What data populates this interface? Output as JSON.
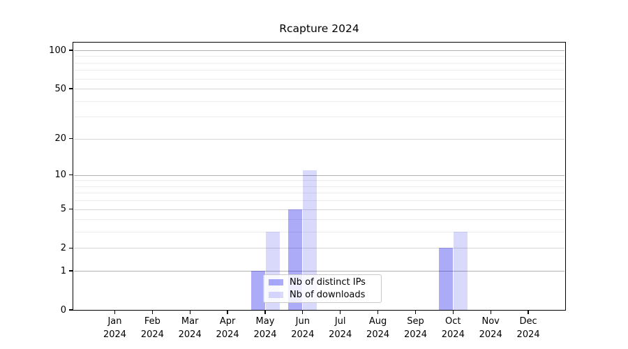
{
  "title": "Rcapture 2024",
  "accent_colors": {
    "bar_distinct_ips": "rgba(10,10,235,0.34)",
    "bar_downloads": "rgba(10,10,235,0.155)"
  },
  "chart_data": {
    "type": "bar",
    "title": "Rcapture 2024",
    "xlabel": "",
    "ylabel": "",
    "categories": [
      "Jan\n2024",
      "Feb\n2024",
      "Mar\n2024",
      "Apr\n2024",
      "May\n2024",
      "Jun\n2024",
      "Jul\n2024",
      "Aug\n2024",
      "Sep\n2024",
      "Oct\n2024",
      "Nov\n2024",
      "Dec\n2024"
    ],
    "series": [
      {
        "name": "Nb of distinct IPs",
        "color": "rgba(10,10,235,0.34)",
        "values": [
          0,
          0,
          0,
          0,
          1,
          5,
          0,
          0,
          0,
          2,
          0,
          0
        ]
      },
      {
        "name": "Nb of downloads",
        "color": "rgba(10,10,235,0.155)",
        "values": [
          0,
          0,
          0,
          0,
          3,
          11,
          0,
          0,
          0,
          3,
          0,
          0
        ]
      }
    ],
    "y_axis": {
      "scale": "log10(1+x)",
      "tick_values": [
        0,
        1,
        2,
        5,
        10,
        20,
        50,
        100
      ],
      "tick_labels": [
        "0",
        "1",
        "2",
        "5",
        "10",
        "20",
        "50",
        "100"
      ],
      "ylim_top_value": 115,
      "gridlines_strong": [
        1,
        10,
        100
      ],
      "gridlines_medium": [
        2,
        5,
        20,
        50
      ],
      "gridlines_minor": [
        3,
        4,
        6,
        7,
        8,
        9,
        30,
        40,
        60,
        70,
        80,
        90
      ],
      "grid": "on"
    },
    "legend": {
      "position": "inside-bottom-center",
      "entries": [
        "Nb of distinct IPs",
        "Nb of downloads"
      ]
    }
  }
}
